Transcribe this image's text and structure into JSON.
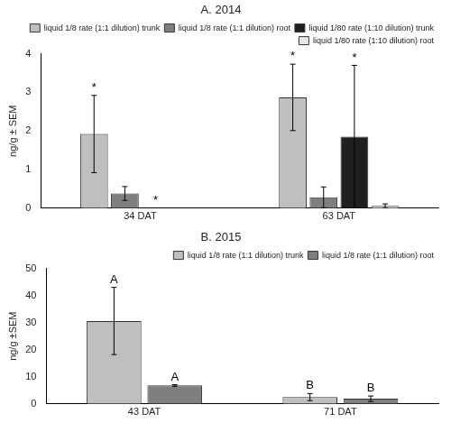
{
  "chart_data": [
    {
      "type": "bar",
      "title": "A. 2014",
      "y_label": "ng/g ± SEM",
      "categories": [
        "34 DAT",
        "63 DAT"
      ],
      "series": [
        {
          "name": "liquid 1/8 rate (1:1 dilution) trunk",
          "color": "#bfbfbf",
          "values": [
            1.92,
            2.87
          ],
          "errors": [
            1.0,
            0.86
          ]
        },
        {
          "name": "liquid 1/8 rate (1:1 dilution) root",
          "color": "#7f7f7f",
          "values": [
            0.38,
            0.28
          ],
          "errors": [
            0.18,
            0.27
          ]
        },
        {
          "name": "liquid 1/80 rate (1:10 dilution) trunk",
          "color": "#1f1f1f",
          "values": [
            0,
            1.85
          ],
          "errors": [
            0,
            1.85
          ]
        },
        {
          "name": "liquid 1/80 rate (1:10 dilution) root",
          "color": "#e6e6e6",
          "values": [
            0,
            0.06
          ],
          "errors": [
            0,
            0.05
          ]
        }
      ],
      "annotations": [
        {
          "category": "34 DAT",
          "series": "liquid 1/8 rate (1:1 dilution) trunk",
          "text": "*"
        },
        {
          "category": "34 DAT",
          "series": "liquid 1/80 rate (1:10 dilution) trunk",
          "text": "*"
        },
        {
          "category": "63 DAT",
          "series": "liquid 1/8 rate (1:1 dilution) trunk",
          "text": "*"
        },
        {
          "category": "63 DAT",
          "series": "liquid 1/80 rate (1:10 dilution) trunk",
          "text": "*"
        }
      ],
      "ylim": [
        0,
        4
      ],
      "yticks": [
        0,
        1,
        2,
        3,
        4
      ],
      "grid": false,
      "legend": "upper right"
    },
    {
      "type": "bar",
      "title": "B. 2015",
      "y_label": "ng/g ±SEM",
      "categories": [
        "43 DAT",
        "71 DAT"
      ],
      "series": [
        {
          "name": "liquid 1/8 rate (1:1 dilution) trunk",
          "color": "#bfbfbf",
          "values": [
            30.6,
            2.5
          ],
          "errors": [
            12.4,
            1.3
          ]
        },
        {
          "name": "liquid 1/8 rate (1:1 dilution) root",
          "color": "#7f7f7f",
          "values": [
            6.8,
            1.9
          ],
          "errors": [
            0.3,
            1.0
          ]
        }
      ],
      "annotations": [
        {
          "category": "43 DAT",
          "series": "liquid 1/8 rate (1:1 dilution) trunk",
          "text": "A"
        },
        {
          "category": "43 DAT",
          "series": "liquid 1/8 rate (1:1 dilution) root",
          "text": "A"
        },
        {
          "category": "71 DAT",
          "series": "liquid 1/8 rate (1:1 dilution) trunk",
          "text": "B"
        },
        {
          "category": "71 DAT",
          "series": "liquid 1/8 rate (1:1 dilution) root",
          "text": "B"
        }
      ],
      "ylim": [
        0,
        50
      ],
      "yticks": [
        0,
        10,
        20,
        30,
        40,
        50
      ],
      "grid": false,
      "legend": "upper right"
    }
  ]
}
